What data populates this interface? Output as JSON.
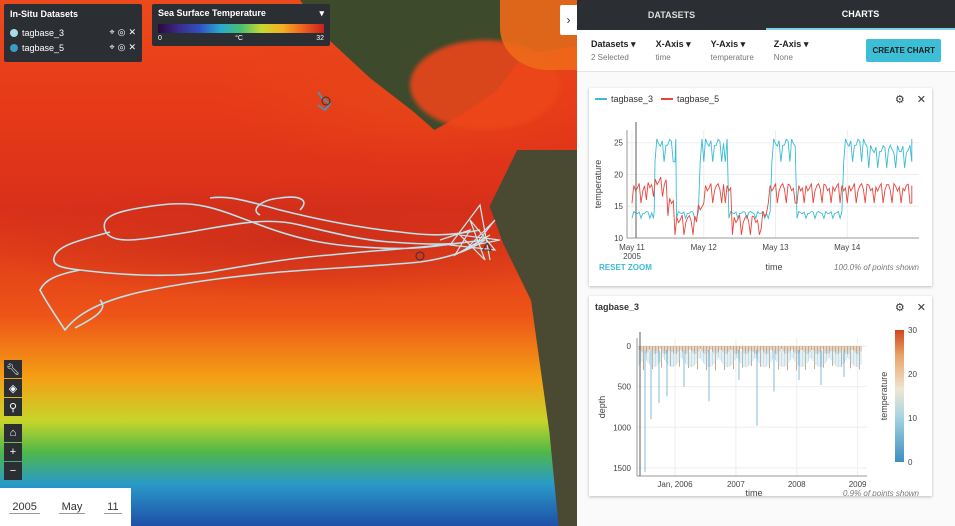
{
  "map": {
    "insitu_panel": {
      "title": "In-Situ Datasets",
      "datasets": [
        {
          "name": "tagbase_3",
          "color": "#a7dbe6"
        },
        {
          "name": "tagbase_5",
          "color": "#3a9ac8"
        }
      ]
    },
    "sst_panel": {
      "title": "Sea Surface Temperature",
      "min": "0",
      "unit": "°C",
      "max": "32"
    },
    "tools": [
      "wrench-icon",
      "layers-icon",
      "pin-icon",
      "home-icon",
      "zoom-in-icon",
      "zoom-out-icon"
    ],
    "date": {
      "year": "2005",
      "month": "May",
      "day": "11"
    }
  },
  "side": {
    "tabs": [
      {
        "label": "DATASETS"
      },
      {
        "label": "CHARTS"
      }
    ],
    "controls": [
      {
        "label": "Datasets",
        "value": "2 Selected"
      },
      {
        "label": "X-Axis",
        "value": "time"
      },
      {
        "label": "Y-Axis",
        "value": "temperature"
      },
      {
        "label": "Z-Axis",
        "value": "None"
      }
    ],
    "create_button": "CREATE CHART",
    "chart1": {
      "legend": [
        {
          "name": "tagbase_3",
          "color": "#3bbcd4"
        },
        {
          "name": "tagbase_5",
          "color": "#e8453c"
        }
      ],
      "reset": "RESET ZOOM",
      "xlabel": "time",
      "points": "100.0% of points shown"
    },
    "chart2": {
      "title": "tagbase_3",
      "xlabel": "time",
      "ylabel": "depth",
      "zlabel": "temperature",
      "points": "0.9% of points shown"
    }
  },
  "chart_data": [
    {
      "type": "line",
      "title": "",
      "xlabel": "time",
      "ylabel": "temperature",
      "x_ticks": [
        "May 11\n2005",
        "May 12",
        "May 13",
        "May 14"
      ],
      "y_ticks": [
        10,
        15,
        20,
        25
      ],
      "ylim": [
        10,
        27
      ],
      "series": [
        {
          "name": "tagbase_3",
          "color": "#3bbcd4",
          "x": [
            0,
            0.3,
            0.32,
            0.6,
            0.62,
            0.9,
            0.95,
            1.0,
            1.3,
            1.35,
            1.9,
            1.95,
            2.2,
            2.3,
            2.9,
            2.95,
            3.2,
            3.3,
            3.9
          ],
          "y": [
            14,
            14,
            25,
            25,
            14,
            14,
            25,
            25,
            25,
            14,
            14,
            25,
            25,
            14,
            14,
            25,
            25,
            24,
            25
          ]
        },
        {
          "name": "tagbase_5",
          "color": "#e8453c",
          "x": [
            0,
            0.2,
            0.3,
            0.5,
            0.6,
            0.9,
            1.0,
            1.3,
            1.4,
            1.8,
            1.9,
            2.3,
            2.4,
            2.9,
            3.0,
            3.9
          ],
          "y": [
            18,
            18.5,
            19,
            16,
            13,
            15,
            18,
            18,
            13,
            14,
            18,
            18,
            18,
            18,
            18,
            18
          ]
        }
      ]
    },
    {
      "type": "scatter",
      "title": "tagbase_3",
      "xlabel": "time",
      "ylabel": "depth",
      "zlabel": "temperature",
      "x_ticks": [
        "Jan, 2006",
        "2007",
        "2008",
        "2009"
      ],
      "y_ticks": [
        0,
        500,
        1000,
        1500
      ],
      "color_ticks": [
        0,
        10,
        20,
        30
      ]
    }
  ]
}
